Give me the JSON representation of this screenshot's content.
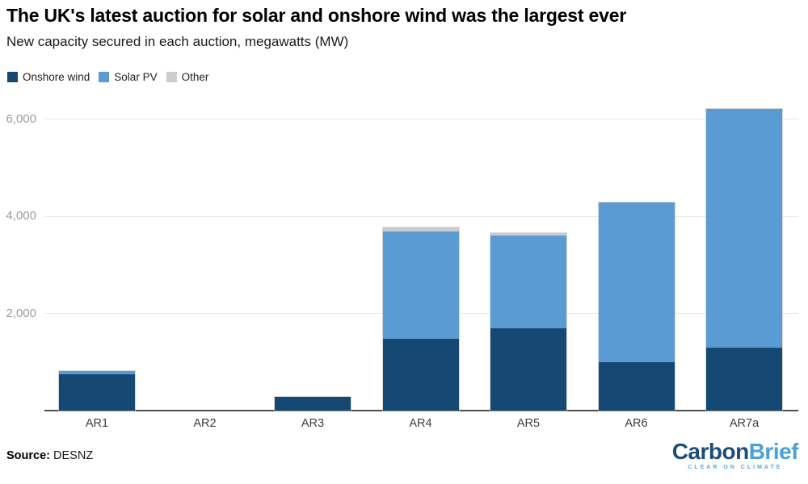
{
  "title": "The UK's latest auction for solar and onshore wind was the largest ever",
  "subtitle": "New capacity secured in each auction, megawatts (MW)",
  "legend": [
    {
      "label": "Onshore wind",
      "color": "#154973"
    },
    {
      "label": "Solar PV",
      "color": "#5b9bd4"
    },
    {
      "label": "Other",
      "color": "#cccccc"
    }
  ],
  "chart_data": {
    "type": "bar",
    "stacked": true,
    "title": "The UK's latest auction for solar and onshore wind was the largest ever",
    "subtitle": "New capacity secured in each auction, megawatts (MW)",
    "xlabel": "",
    "ylabel": "megawatts (MW)",
    "categories": [
      "AR1",
      "AR2",
      "AR3",
      "AR4",
      "AR5",
      "AR6",
      "AR7a"
    ],
    "series": [
      {
        "name": "Onshore wind",
        "color": "#154973",
        "values": [
          749,
          0,
          275,
          1480,
          1695,
          990,
          1295
        ]
      },
      {
        "name": "Solar PV",
        "color": "#5b9bd4",
        "values": [
          72,
          0,
          0,
          2210,
          1900,
          3295,
          4915
        ]
      },
      {
        "name": "Other",
        "color": "#cccccc",
        "values": [
          0,
          0,
          0,
          80,
          50,
          0,
          0
        ]
      }
    ],
    "ylim": [
      0,
      6500
    ],
    "yticks": [
      {
        "value": 2000,
        "label": "2,000"
      },
      {
        "value": 4000,
        "label": "4,000"
      },
      {
        "value": 6000,
        "label": "6,000"
      }
    ],
    "grid": true,
    "legend_position": "top-left"
  },
  "source": {
    "label": "Source:",
    "value": "DESNZ"
  },
  "logo": {
    "part1": "Carbon",
    "part2": "Brief",
    "tagline": "CLEAR ON CLIMATE"
  }
}
